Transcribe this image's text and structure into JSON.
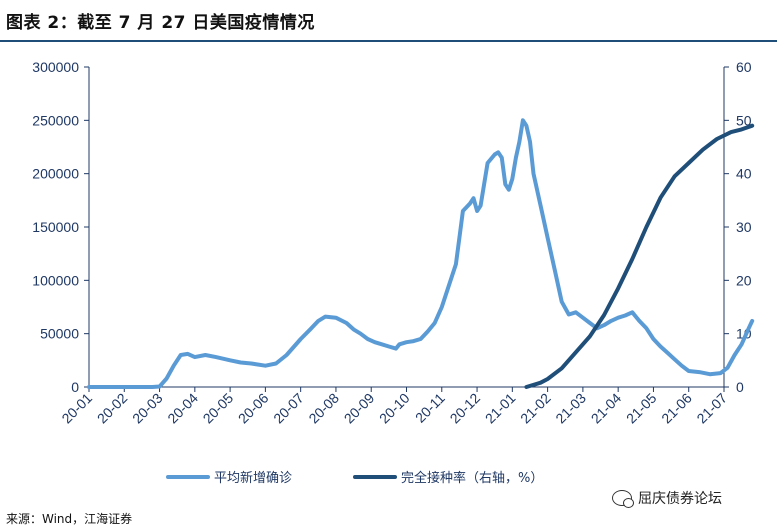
{
  "header": {
    "title": "图表 2：截至 7 月 27 日美国疫情情况"
  },
  "footer": {
    "source": "来源：Wind，江海证券",
    "watermark": "屈庆债券论坛",
    "watermark_icon": "wechat-icon"
  },
  "chart_data": {
    "type": "line",
    "categories": [
      "20-01",
      "20-02",
      "20-03",
      "20-04",
      "20-05",
      "20-06",
      "20-07",
      "20-08",
      "20-09",
      "20-10",
      "20-11",
      "20-12",
      "21-01",
      "21-02",
      "21-03",
      "21-04",
      "21-05",
      "21-06",
      "21-07"
    ],
    "ylim_left": [
      0,
      300000
    ],
    "yticks_left": [
      0,
      50000,
      100000,
      150000,
      200000,
      250000,
      300000
    ],
    "ylim_right": [
      0,
      60
    ],
    "yticks_right": [
      0,
      10,
      20,
      30,
      40,
      50,
      60
    ],
    "grid": false,
    "legend_position": "bottom",
    "series": [
      {
        "name": "平均新增确诊",
        "axis": "left",
        "color": "#5b9bd5",
        "points": [
          [
            0.0,
            0
          ],
          [
            1.0,
            0
          ],
          [
            1.8,
            0
          ],
          [
            2.0,
            500
          ],
          [
            2.2,
            8000
          ],
          [
            2.4,
            20000
          ],
          [
            2.6,
            30000
          ],
          [
            2.8,
            31000
          ],
          [
            3.0,
            28000
          ],
          [
            3.3,
            30000
          ],
          [
            3.6,
            28000
          ],
          [
            4.0,
            25000
          ],
          [
            4.3,
            23000
          ],
          [
            4.6,
            22000
          ],
          [
            5.0,
            20000
          ],
          [
            5.3,
            22000
          ],
          [
            5.6,
            30000
          ],
          [
            6.0,
            45000
          ],
          [
            6.3,
            55000
          ],
          [
            6.5,
            62000
          ],
          [
            6.7,
            66000
          ],
          [
            7.0,
            65000
          ],
          [
            7.3,
            60000
          ],
          [
            7.5,
            54000
          ],
          [
            7.7,
            50000
          ],
          [
            7.9,
            45000
          ],
          [
            8.1,
            42000
          ],
          [
            8.3,
            40000
          ],
          [
            8.5,
            38000
          ],
          [
            8.7,
            36000
          ],
          [
            8.8,
            40000
          ],
          [
            9.0,
            42000
          ],
          [
            9.2,
            43000
          ],
          [
            9.4,
            45000
          ],
          [
            9.6,
            52000
          ],
          [
            9.8,
            60000
          ],
          [
            10.0,
            75000
          ],
          [
            10.2,
            95000
          ],
          [
            10.4,
            115000
          ],
          [
            10.5,
            140000
          ],
          [
            10.6,
            165000
          ],
          [
            10.8,
            172000
          ],
          [
            10.9,
            177000
          ],
          [
            11.0,
            165000
          ],
          [
            11.1,
            170000
          ],
          [
            11.2,
            190000
          ],
          [
            11.3,
            210000
          ],
          [
            11.5,
            218000
          ],
          [
            11.6,
            220000
          ],
          [
            11.7,
            215000
          ],
          [
            11.8,
            190000
          ],
          [
            11.9,
            185000
          ],
          [
            12.0,
            195000
          ],
          [
            12.1,
            215000
          ],
          [
            12.2,
            230000
          ],
          [
            12.3,
            250000
          ],
          [
            12.4,
            245000
          ],
          [
            12.5,
            230000
          ],
          [
            12.6,
            200000
          ],
          [
            12.8,
            170000
          ],
          [
            13.0,
            140000
          ],
          [
            13.2,
            110000
          ],
          [
            13.4,
            80000
          ],
          [
            13.6,
            68000
          ],
          [
            13.8,
            70000
          ],
          [
            14.0,
            65000
          ],
          [
            14.2,
            60000
          ],
          [
            14.4,
            55000
          ],
          [
            14.6,
            58000
          ],
          [
            14.8,
            62000
          ],
          [
            15.0,
            65000
          ],
          [
            15.2,
            67000
          ],
          [
            15.4,
            70000
          ],
          [
            15.6,
            62000
          ],
          [
            15.8,
            55000
          ],
          [
            16.0,
            45000
          ],
          [
            16.2,
            38000
          ],
          [
            16.4,
            32000
          ],
          [
            16.6,
            26000
          ],
          [
            16.8,
            20000
          ],
          [
            17.0,
            15000
          ],
          [
            17.3,
            14000
          ],
          [
            17.6,
            12000
          ],
          [
            17.9,
            13000
          ],
          [
            18.1,
            18000
          ],
          [
            18.3,
            30000
          ],
          [
            18.5,
            40000
          ],
          [
            18.7,
            55000
          ],
          [
            18.8,
            62000
          ]
        ]
      },
      {
        "name": "完全接种率（右轴，%）",
        "axis": "right",
        "color": "#1f4e79",
        "points": [
          [
            12.4,
            0
          ],
          [
            12.8,
            0.8
          ],
          [
            13.0,
            1.5
          ],
          [
            13.4,
            3.5
          ],
          [
            13.8,
            6.5
          ],
          [
            14.2,
            9.5
          ],
          [
            14.6,
            13.5
          ],
          [
            15.0,
            18.5
          ],
          [
            15.4,
            24.0
          ],
          [
            15.8,
            30.0
          ],
          [
            16.2,
            35.5
          ],
          [
            16.6,
            39.5
          ],
          [
            17.0,
            42.0
          ],
          [
            17.4,
            44.5
          ],
          [
            17.8,
            46.5
          ],
          [
            18.2,
            47.8
          ],
          [
            18.5,
            48.3
          ],
          [
            18.8,
            49.0
          ]
        ]
      }
    ]
  }
}
